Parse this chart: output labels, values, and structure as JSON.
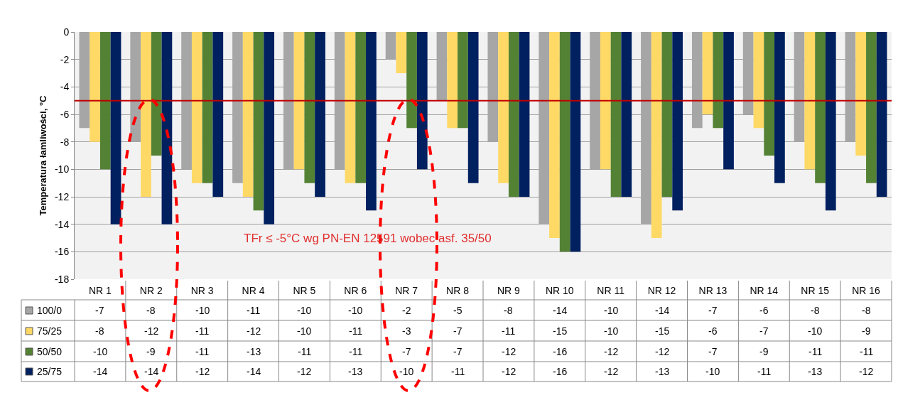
{
  "chart_data": {
    "type": "bar",
    "ylabel": "Temperatura łamliwości, °C",
    "categories": [
      "NR 1",
      "NR 2",
      "NR 3",
      "NR 4",
      "NR 5",
      "NR 6",
      "NR 7",
      "NR 8",
      "NR 9",
      "NR 10",
      "NR 11",
      "NR 12",
      "NR 13",
      "NR 14",
      "NR 15",
      "NR 16"
    ],
    "series": [
      {
        "name": "100/0",
        "color": "#a6a6a6",
        "values": [
          -7,
          -8,
          -10,
          -11,
          -10,
          -10,
          -2,
          -5,
          -8,
          -14,
          -10,
          -14,
          -7,
          -6,
          -8,
          -8
        ]
      },
      {
        "name": "75/25",
        "color": "#ffd966",
        "values": [
          -8,
          -12,
          -11,
          -12,
          -10,
          -11,
          -3,
          -7,
          -11,
          -15,
          -10,
          -15,
          -6,
          -7,
          -10,
          -9
        ]
      },
      {
        "name": "50/50",
        "color": "#548235",
        "values": [
          -10,
          -9,
          -11,
          -13,
          -11,
          -11,
          -7,
          -7,
          -12,
          -16,
          -12,
          -12,
          -7,
          -9,
          -11,
          -11
        ]
      },
      {
        "name": "25/75",
        "color": "#002060",
        "values": [
          -14,
          -14,
          -12,
          -14,
          -12,
          -13,
          -10,
          -11,
          -12,
          -16,
          -12,
          -13,
          -10,
          -11,
          -13,
          -12
        ]
      }
    ],
    "ylim": [
      -18,
      0
    ],
    "yticks": [
      0,
      -2,
      -4,
      -6,
      -8,
      -10,
      -12,
      -14,
      -16,
      -18
    ],
    "grid": "y",
    "legend": "bottom",
    "data_labels": true,
    "ref_lines": [
      {
        "axis": "y",
        "value": -5,
        "color": "#c00000"
      }
    ],
    "annotations": [
      "TFr ≤ -5°C wg PN-EN 12591 wobec asf. 35/50"
    ]
  }
}
